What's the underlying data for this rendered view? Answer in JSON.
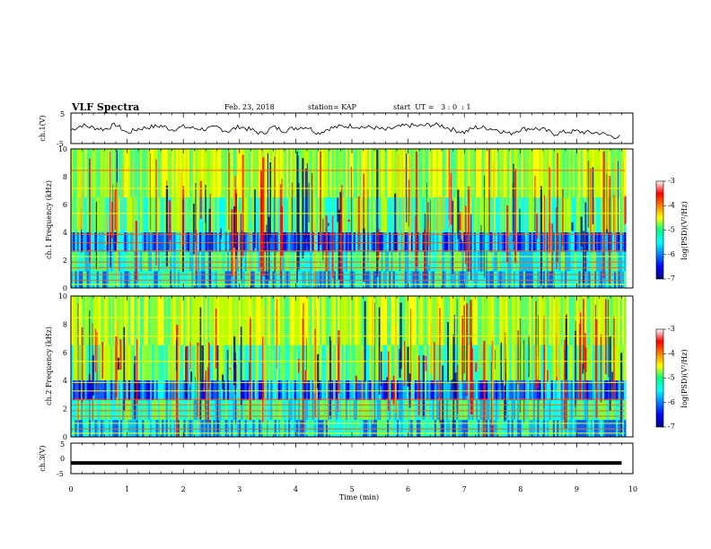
{
  "header": {
    "title": "VLF Spectra",
    "date": "Feb. 23, 2018",
    "station": "station= KAP",
    "start_ut": "start  UT =   3 : 0  : 1"
  },
  "chart_data": [
    {
      "type": "line",
      "name": "ch1-waveform",
      "ylabel": "ch.1(V)",
      "ylim": [
        -5,
        5
      ],
      "yticks": [
        "5",
        "-5"
      ],
      "x": [
        0,
        0.2,
        0.4,
        0.6,
        0.8,
        1.0,
        1.2,
        1.4,
        1.6,
        1.8,
        2.0,
        2.2,
        2.4,
        2.6,
        2.8,
        3.0,
        3.2,
        3.4,
        3.6,
        3.8,
        4.0,
        4.2,
        4.4,
        4.6,
        4.8,
        5.0,
        5.2,
        5.4,
        5.6,
        5.8,
        6.0,
        6.2,
        6.4,
        6.6,
        6.8,
        7.0,
        7.2,
        7.4,
        7.6,
        7.8,
        8.0,
        8.2,
        8.4,
        8.6,
        8.8,
        9.0,
        9.2,
        9.4,
        9.6,
        9.8
      ],
      "y": [
        -0.5,
        1.0,
        0.2,
        -0.3,
        1.2,
        -1.5,
        -0.2,
        0.4,
        0.8,
        -0.4,
        0.5,
        0.0,
        -0.3,
        0.3,
        -1.0,
        0.6,
        -0.5,
        -1.8,
        0.4,
        -0.8,
        0.2,
        0.5,
        -1.6,
        0.0,
        0.6,
        0.8,
        0.4,
        0.2,
        -0.6,
        0.3,
        1.0,
        0.7,
        1.2,
        0.9,
        -0.5,
        -1.3,
        0.3,
        0.1,
        -0.5,
        -1.8,
        -0.3,
        0.0,
        -0.4,
        -1.8,
        -1.2,
        -1.0,
        -1.4,
        -1.5,
        -2.5,
        -3.0
      ]
    },
    {
      "type": "heatmap",
      "name": "ch1-spectrogram",
      "ylabel": "ch.1 Frequency (kHz)",
      "ylim": [
        0,
        10
      ],
      "yticks": [
        0,
        2,
        4,
        6,
        8,
        10
      ],
      "colorbar": {
        "label": "log(PSD)(V²/Hz)",
        "range": [
          -7,
          -3
        ],
        "ticks": [
          -3,
          -4,
          -5,
          -6,
          -7
        ]
      }
    },
    {
      "type": "heatmap",
      "name": "ch2-spectrogram",
      "ylabel": "ch.2 Frequency (kHz)",
      "ylim": [
        0,
        10
      ],
      "yticks": [
        0,
        2,
        4,
        6,
        8,
        10
      ],
      "colorbar": {
        "label": "log(PSD)(V²/Hz)",
        "range": [
          -7,
          -3
        ],
        "ticks": [
          -3,
          -4,
          -5,
          -6,
          -7
        ]
      }
    },
    {
      "type": "line",
      "name": "ch3-waveform",
      "ylabel": "ch.3(V)",
      "ylim": [
        -5,
        5
      ],
      "yticks": [
        "5",
        "0",
        "-5"
      ],
      "x": [
        0,
        9.8
      ],
      "y": [
        -1.5,
        -1.5
      ]
    }
  ],
  "xaxis": {
    "label": "Time (min)",
    "range": [
      0,
      10
    ],
    "ticks": [
      0,
      1,
      2,
      3,
      4,
      5,
      6,
      7,
      8,
      9,
      10
    ]
  }
}
